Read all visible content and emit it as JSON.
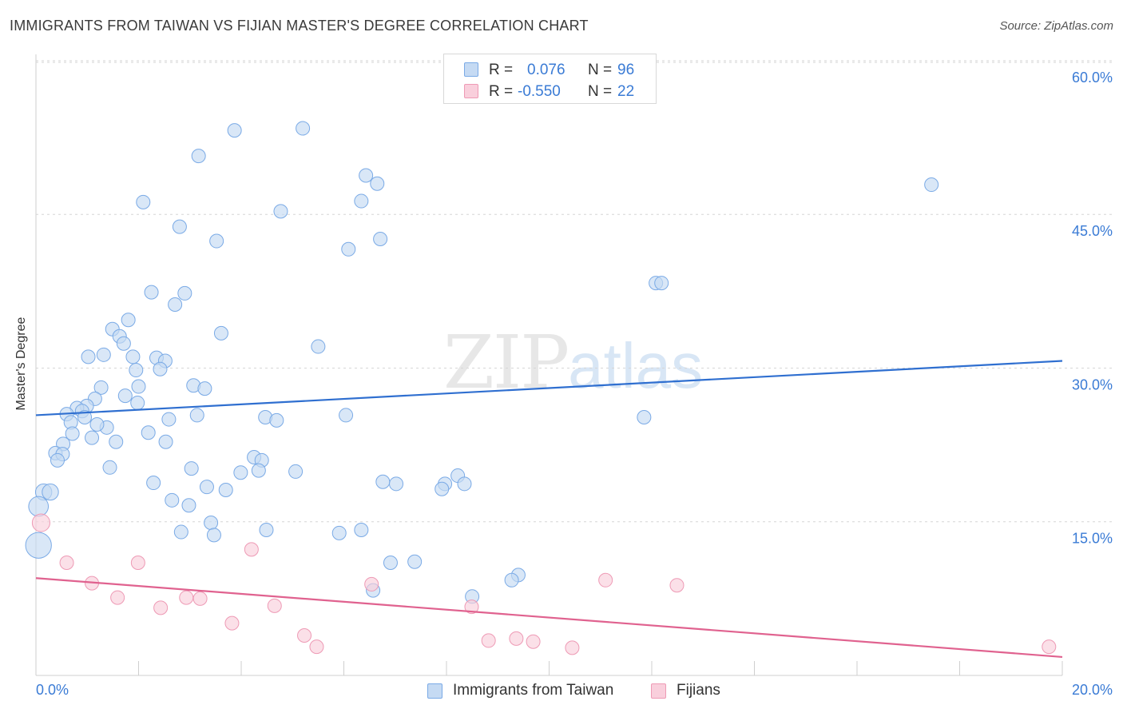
{
  "title": "IMMIGRANTS FROM TAIWAN VS FIJIAN MASTER'S DEGREE CORRELATION CHART",
  "source": "Source: ZipAtlas.com",
  "watermark": {
    "zip": "ZIP",
    "atlas": "atlas"
  },
  "legend_top": {
    "rows": [
      {
        "r_label": "R =",
        "r_value": "0.076",
        "n_label": "N =",
        "n_value": "96"
      },
      {
        "r_label": "R =",
        "r_value": "-0.550",
        "n_label": "N =",
        "n_value": "22"
      }
    ]
  },
  "colors": {
    "taiwan_fill": "#c5daf3",
    "taiwan_stroke": "#7aaae6",
    "taiwan_line": "#2f6fd0",
    "fiji_fill": "#f9cfdc",
    "fiji_stroke": "#ee9ab5",
    "fiji_line": "#e0628f",
    "tick_text": "#3a7bd5",
    "grid": "#d6d6d6"
  },
  "chart_data": {
    "type": "scatter",
    "title": "IMMIGRANTS FROM TAIWAN VS FIJIAN MASTER'S DEGREE CORRELATION CHART",
    "xlabel": "",
    "ylabel": "Master's Degree",
    "xlim": [
      0,
      20
    ],
    "ylim": [
      0,
      63
    ],
    "x_tick_labels": [
      "0.0%",
      "20.0%"
    ],
    "y_ticks": [
      15,
      30,
      45,
      60
    ],
    "y_tick_labels": [
      "15.0%",
      "30.0%",
      "45.0%",
      "60.0%"
    ],
    "grid": true,
    "legend_position": "bottom",
    "series": [
      {
        "name": "Immigrants from Taiwan",
        "r": 0.076,
        "n": 96,
        "trend": {
          "x": [
            0,
            20
          ],
          "y": [
            25.4,
            30.7
          ]
        },
        "points": [
          {
            "x": 3.87,
            "y": 53.2,
            "s": 1
          },
          {
            "x": 5.2,
            "y": 53.4,
            "s": 1
          },
          {
            "x": 3.17,
            "y": 50.7,
            "s": 1
          },
          {
            "x": 6.43,
            "y": 48.8,
            "s": 1
          },
          {
            "x": 6.65,
            "y": 48.0,
            "s": 1
          },
          {
            "x": 17.45,
            "y": 47.9,
            "s": 1
          },
          {
            "x": 2.09,
            "y": 46.2,
            "s": 1
          },
          {
            "x": 6.34,
            "y": 46.3,
            "s": 1
          },
          {
            "x": 4.77,
            "y": 45.3,
            "s": 1
          },
          {
            "x": 2.8,
            "y": 43.8,
            "s": 1
          },
          {
            "x": 6.71,
            "y": 42.6,
            "s": 1
          },
          {
            "x": 3.52,
            "y": 42.4,
            "s": 1
          },
          {
            "x": 6.09,
            "y": 41.6,
            "s": 1
          },
          {
            "x": 12.08,
            "y": 38.3,
            "s": 1
          },
          {
            "x": 12.19,
            "y": 38.3,
            "s": 1
          },
          {
            "x": 2.25,
            "y": 37.4,
            "s": 1
          },
          {
            "x": 2.9,
            "y": 37.3,
            "s": 1
          },
          {
            "x": 2.71,
            "y": 36.2,
            "s": 1
          },
          {
            "x": 1.8,
            "y": 34.7,
            "s": 1
          },
          {
            "x": 1.49,
            "y": 33.8,
            "s": 1
          },
          {
            "x": 1.63,
            "y": 33.1,
            "s": 1
          },
          {
            "x": 3.61,
            "y": 33.4,
            "s": 1
          },
          {
            "x": 1.71,
            "y": 32.4,
            "s": 1
          },
          {
            "x": 5.5,
            "y": 32.1,
            "s": 1
          },
          {
            "x": 1.32,
            "y": 31.3,
            "s": 1
          },
          {
            "x": 1.02,
            "y": 31.1,
            "s": 1
          },
          {
            "x": 1.89,
            "y": 31.1,
            "s": 1
          },
          {
            "x": 2.35,
            "y": 31.0,
            "s": 1
          },
          {
            "x": 2.52,
            "y": 30.7,
            "s": 1
          },
          {
            "x": 1.95,
            "y": 29.8,
            "s": 1
          },
          {
            "x": 2.42,
            "y": 29.9,
            "s": 1
          },
          {
            "x": 2.0,
            "y": 28.2,
            "s": 1
          },
          {
            "x": 3.07,
            "y": 28.3,
            "s": 1
          },
          {
            "x": 3.29,
            "y": 28.0,
            "s": 1
          },
          {
            "x": 1.27,
            "y": 28.1,
            "s": 1
          },
          {
            "x": 1.74,
            "y": 27.3,
            "s": 1
          },
          {
            "x": 1.15,
            "y": 27.0,
            "s": 1
          },
          {
            "x": 0.99,
            "y": 26.3,
            "s": 1
          },
          {
            "x": 0.8,
            "y": 26.1,
            "s": 1
          },
          {
            "x": 1.98,
            "y": 26.6,
            "s": 1
          },
          {
            "x": 0.9,
            "y": 25.8,
            "s": 1
          },
          {
            "x": 0.6,
            "y": 25.5,
            "s": 1
          },
          {
            "x": 0.95,
            "y": 25.2,
            "s": 1
          },
          {
            "x": 3.14,
            "y": 25.4,
            "s": 1
          },
          {
            "x": 2.59,
            "y": 25.0,
            "s": 1
          },
          {
            "x": 4.47,
            "y": 25.2,
            "s": 1
          },
          {
            "x": 4.69,
            "y": 24.9,
            "s": 1
          },
          {
            "x": 6.04,
            "y": 25.4,
            "s": 1
          },
          {
            "x": 11.85,
            "y": 25.2,
            "s": 1
          },
          {
            "x": 0.68,
            "y": 24.7,
            "s": 1
          },
          {
            "x": 1.38,
            "y": 24.2,
            "s": 1
          },
          {
            "x": 1.19,
            "y": 24.5,
            "s": 1
          },
          {
            "x": 0.71,
            "y": 23.6,
            "s": 1
          },
          {
            "x": 2.19,
            "y": 23.7,
            "s": 1
          },
          {
            "x": 1.09,
            "y": 23.2,
            "s": 1
          },
          {
            "x": 1.56,
            "y": 22.8,
            "s": 1
          },
          {
            "x": 0.53,
            "y": 22.6,
            "s": 1
          },
          {
            "x": 2.53,
            "y": 22.8,
            "s": 1
          },
          {
            "x": 0.38,
            "y": 21.7,
            "s": 1
          },
          {
            "x": 0.52,
            "y": 21.6,
            "s": 1
          },
          {
            "x": 4.25,
            "y": 21.3,
            "s": 1
          },
          {
            "x": 0.42,
            "y": 21.0,
            "s": 1
          },
          {
            "x": 4.4,
            "y": 21.0,
            "s": 1
          },
          {
            "x": 1.44,
            "y": 20.3,
            "s": 1
          },
          {
            "x": 3.03,
            "y": 20.2,
            "s": 1
          },
          {
            "x": 4.34,
            "y": 20.0,
            "s": 1
          },
          {
            "x": 3.99,
            "y": 19.8,
            "s": 1
          },
          {
            "x": 5.06,
            "y": 19.9,
            "s": 1
          },
          {
            "x": 8.22,
            "y": 19.5,
            "s": 1
          },
          {
            "x": 2.29,
            "y": 18.8,
            "s": 1
          },
          {
            "x": 6.76,
            "y": 18.9,
            "s": 1
          },
          {
            "x": 7.02,
            "y": 18.7,
            "s": 1
          },
          {
            "x": 7.97,
            "y": 18.7,
            "s": 1
          },
          {
            "x": 8.35,
            "y": 18.7,
            "s": 1
          },
          {
            "x": 3.33,
            "y": 18.4,
            "s": 1
          },
          {
            "x": 7.91,
            "y": 18.2,
            "s": 1
          },
          {
            "x": 3.7,
            "y": 18.1,
            "s": 1
          },
          {
            "x": 0.15,
            "y": 17.9,
            "s": 1.2
          },
          {
            "x": 0.28,
            "y": 17.9,
            "s": 1.2
          },
          {
            "x": 2.65,
            "y": 17.1,
            "s": 1
          },
          {
            "x": 2.98,
            "y": 16.6,
            "s": 1
          },
          {
            "x": 0.05,
            "y": 16.5,
            "s": 1.45
          },
          {
            "x": 3.41,
            "y": 14.9,
            "s": 1
          },
          {
            "x": 4.49,
            "y": 14.2,
            "s": 1
          },
          {
            "x": 2.83,
            "y": 14.0,
            "s": 1
          },
          {
            "x": 3.47,
            "y": 13.7,
            "s": 1
          },
          {
            "x": 5.91,
            "y": 13.9,
            "s": 1
          },
          {
            "x": 6.34,
            "y": 14.2,
            "s": 1
          },
          {
            "x": 0.05,
            "y": 12.7,
            "s": 1.9
          },
          {
            "x": 6.91,
            "y": 11.0,
            "s": 1
          },
          {
            "x": 7.38,
            "y": 11.1,
            "s": 1
          },
          {
            "x": 9.4,
            "y": 9.8,
            "s": 1
          },
          {
            "x": 9.27,
            "y": 9.3,
            "s": 1
          },
          {
            "x": 6.57,
            "y": 8.3,
            "s": 1
          },
          {
            "x": 8.5,
            "y": 7.7,
            "s": 1
          }
        ]
      },
      {
        "name": "Fijians",
        "r": -0.55,
        "n": 22,
        "trend": {
          "x": [
            0,
            20
          ],
          "y": [
            9.5,
            1.8
          ]
        },
        "points": [
          {
            "x": 0.1,
            "y": 14.9,
            "s": 1.3
          },
          {
            "x": 4.2,
            "y": 12.3,
            "s": 1
          },
          {
            "x": 0.6,
            "y": 11.0,
            "s": 1
          },
          {
            "x": 1.99,
            "y": 11.0,
            "s": 1
          },
          {
            "x": 1.09,
            "y": 9.0,
            "s": 1
          },
          {
            "x": 6.54,
            "y": 8.9,
            "s": 1
          },
          {
            "x": 11.1,
            "y": 9.3,
            "s": 1
          },
          {
            "x": 12.49,
            "y": 8.8,
            "s": 1
          },
          {
            "x": 1.59,
            "y": 7.6,
            "s": 1
          },
          {
            "x": 2.93,
            "y": 7.6,
            "s": 1
          },
          {
            "x": 3.2,
            "y": 7.5,
            "s": 1
          },
          {
            "x": 4.65,
            "y": 6.8,
            "s": 1
          },
          {
            "x": 2.43,
            "y": 6.6,
            "s": 1
          },
          {
            "x": 8.49,
            "y": 6.7,
            "s": 1
          },
          {
            "x": 3.82,
            "y": 5.1,
            "s": 1
          },
          {
            "x": 5.23,
            "y": 3.9,
            "s": 1
          },
          {
            "x": 5.47,
            "y": 2.8,
            "s": 1
          },
          {
            "x": 8.82,
            "y": 3.4,
            "s": 1
          },
          {
            "x": 9.36,
            "y": 3.6,
            "s": 1
          },
          {
            "x": 9.69,
            "y": 3.3,
            "s": 1
          },
          {
            "x": 10.45,
            "y": 2.7,
            "s": 1
          },
          {
            "x": 19.74,
            "y": 2.8,
            "s": 1
          }
        ]
      }
    ]
  },
  "bottom_legend": {
    "items": [
      "Immigrants from Taiwan",
      "Fijians"
    ]
  }
}
